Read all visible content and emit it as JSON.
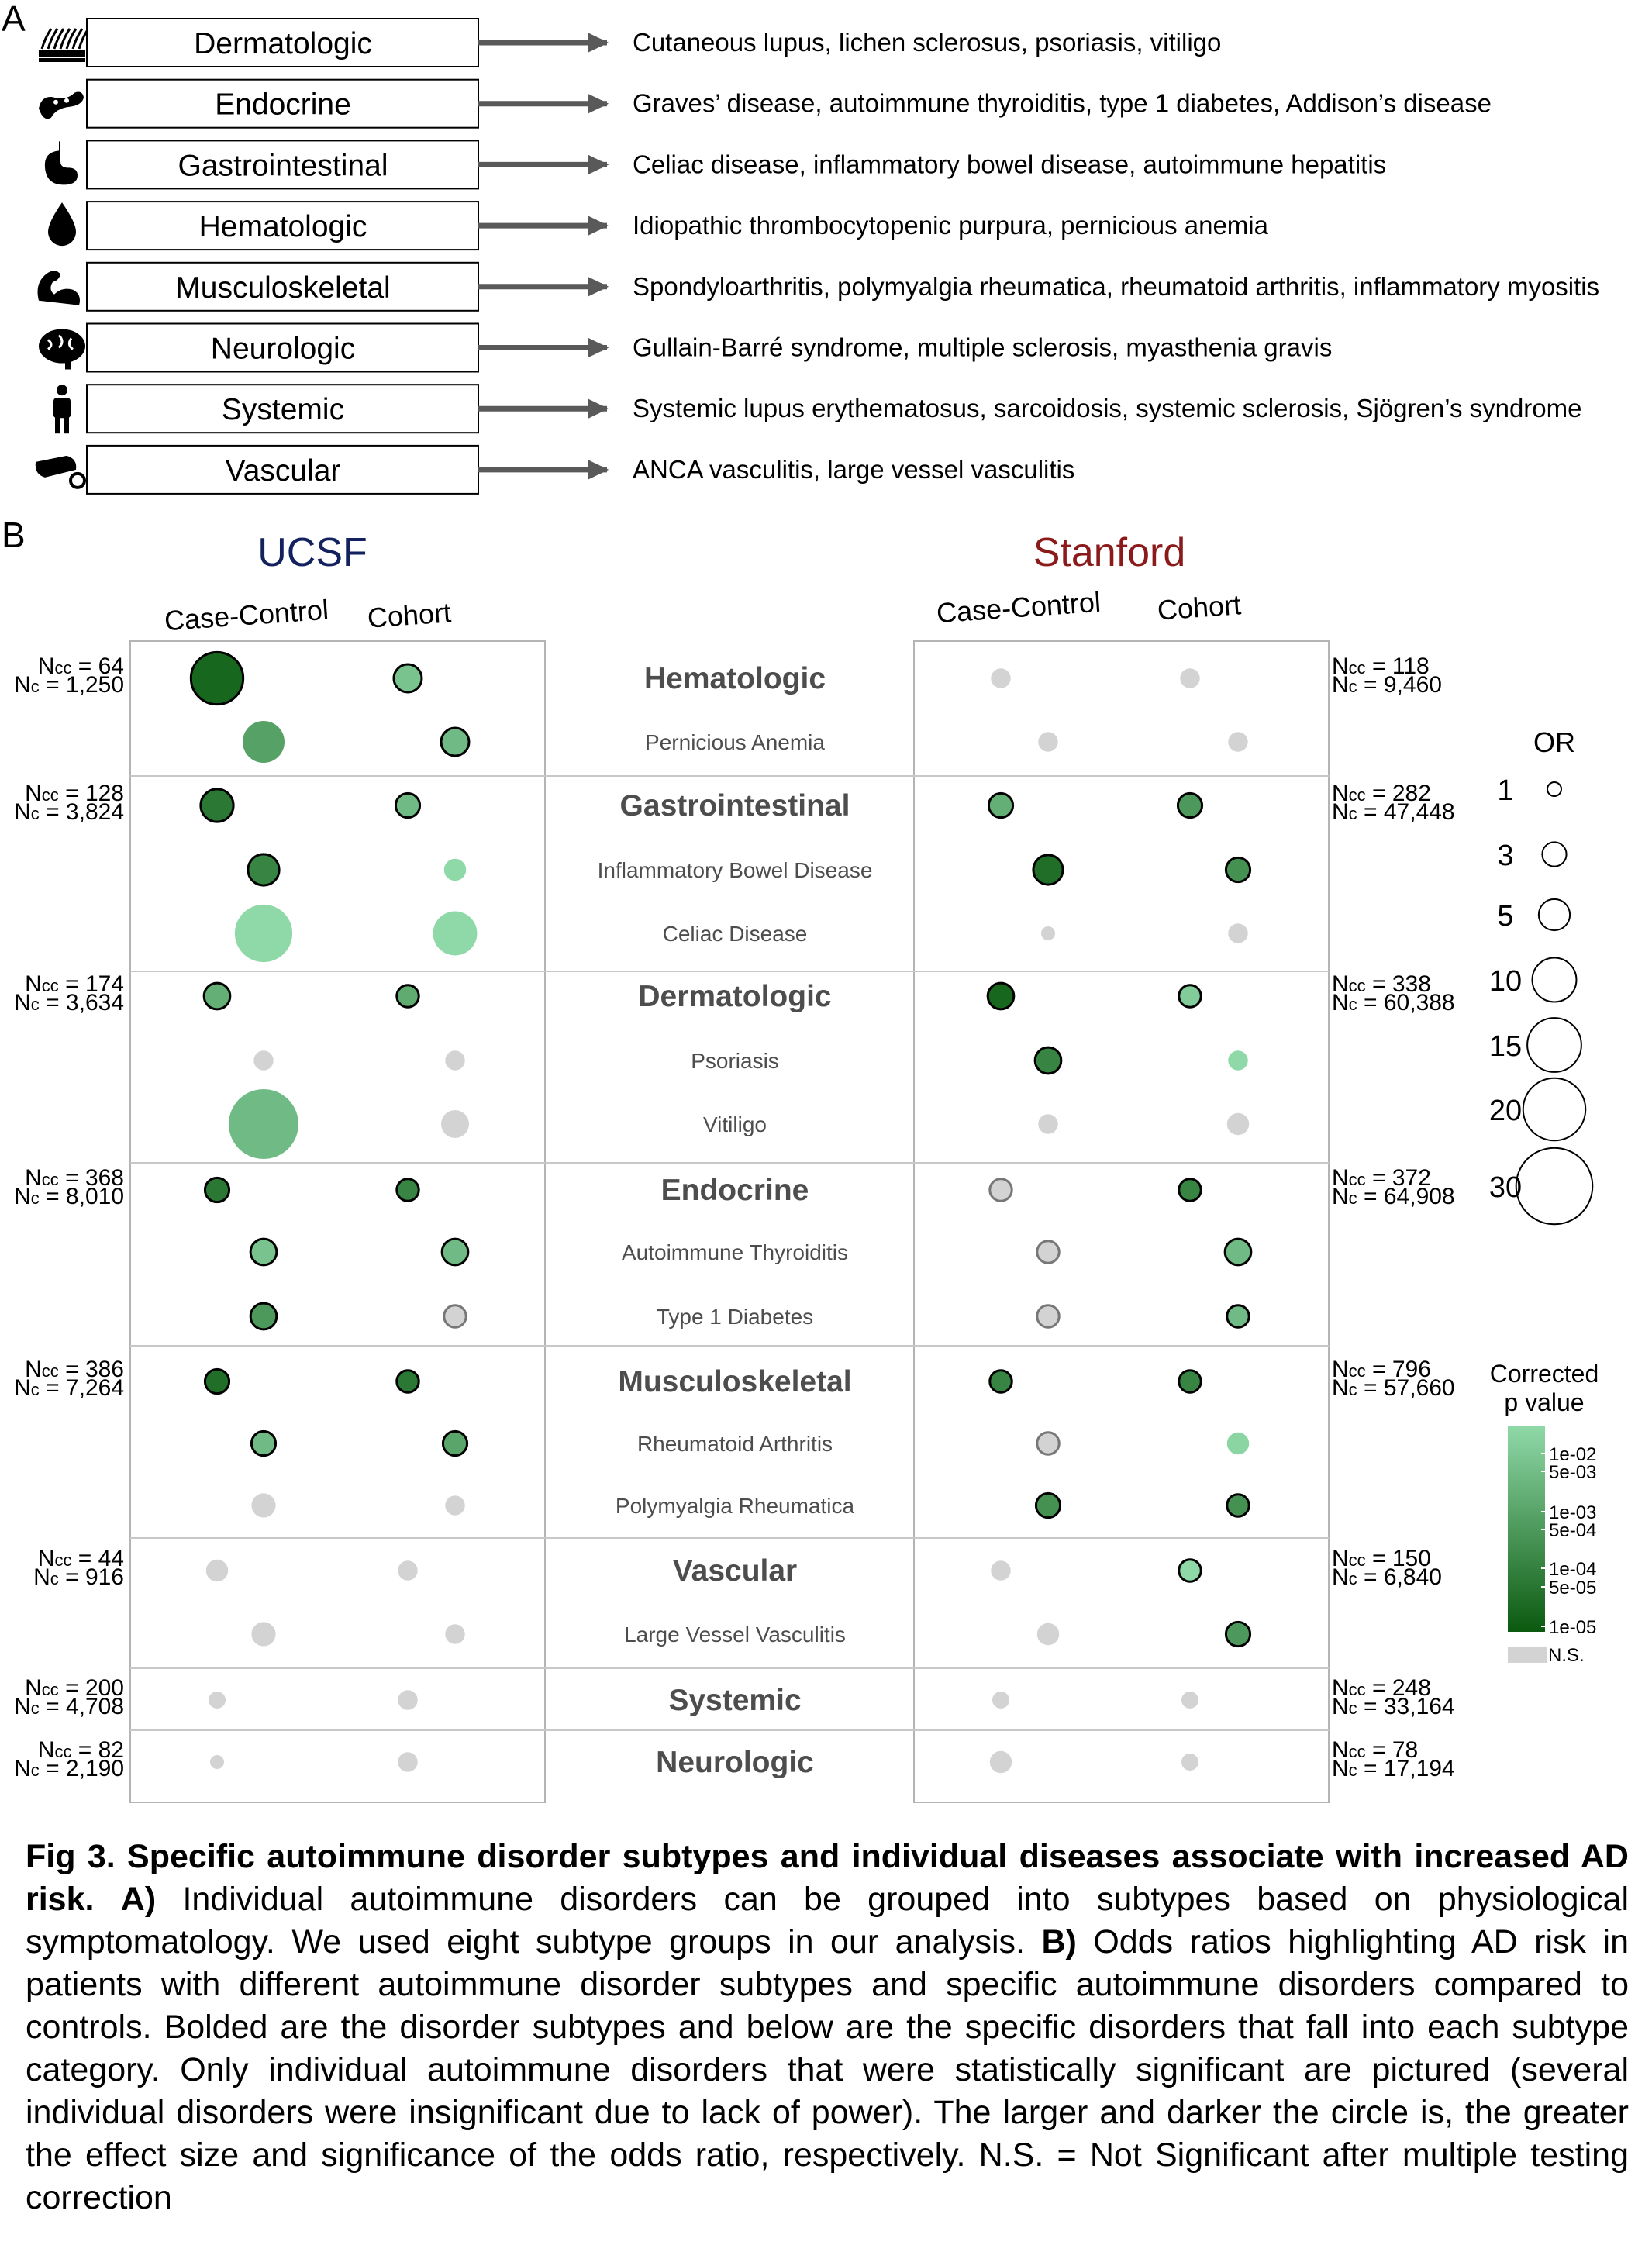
{
  "panel_a": {
    "label": "A",
    "rows": [
      {
        "category": "Dermatologic",
        "icon": "skin-icon",
        "diseases": "Cutaneous lupus, lichen sclerosus, psoriasis, vitiligo"
      },
      {
        "category": "Endocrine",
        "icon": "pancreas-icon",
        "diseases": "Graves’ disease, autoimmune thyroiditis, type 1 diabetes, Addison’s disease"
      },
      {
        "category": "Gastrointestinal",
        "icon": "stomach-icon",
        "diseases": "Celiac disease, inflammatory bowel disease, autoimmune hepatitis"
      },
      {
        "category": "Hematologic",
        "icon": "blood-drop-icon",
        "diseases": "Idiopathic thrombocytopenic purpura, pernicious anemia"
      },
      {
        "category": "Musculoskeletal",
        "icon": "bone-muscle-icon",
        "diseases": "Spondyloarthritis, polymyalgia rheumatica, rheumatoid arthritis, inflammatory myositis"
      },
      {
        "category": "Neurologic",
        "icon": "brain-icon",
        "diseases": "Gullain-Barré syndrome, multiple sclerosis, myasthenia gravis"
      },
      {
        "category": "Systemic",
        "icon": "person-icon",
        "diseases": "Systemic lupus erythematosus, sarcoidosis, systemic sclerosis, Sjögren’s syndrome"
      },
      {
        "category": "Vascular",
        "icon": "blood-vessel-icon",
        "diseases": "ANCA vasculitis, large vessel vasculitis"
      }
    ]
  },
  "panel_b": {
    "label": "B",
    "sites": [
      "UCSF",
      "Stanford"
    ],
    "site_colors": {
      "UCSF": "#13215e",
      "Stanford": "#8b1a1a"
    },
    "designs": [
      "Case-Control",
      "Cohort"
    ]
  },
  "chart_data": {
    "type": "scatter",
    "encoding": "bubble: size = OR, fill = corrected p value, grey = N.S., black outline = bold subtype row",
    "rows": [
      {
        "label": "Hematologic",
        "subtype": true,
        "ucsf_n": [
          "Ncc = 64",
          "Nc = 1,250"
        ],
        "stanford_n": [
          "Ncc = 118",
          "Nc = 9,460"
        ]
      },
      {
        "label": "Pernicious Anemia",
        "subtype": false
      },
      {
        "label": "Gastrointestinal",
        "subtype": true,
        "ucsf_n": [
          "Ncc = 128",
          "Nc = 3,824"
        ],
        "stanford_n": [
          "Ncc = 282",
          "Nc = 47,448"
        ]
      },
      {
        "label": "Inflammatory Bowel Disease",
        "subtype": false
      },
      {
        "label": "Celiac Disease",
        "subtype": false
      },
      {
        "label": "Dermatologic",
        "subtype": true,
        "ucsf_n": [
          "Ncc = 174",
          "Nc = 3,634"
        ],
        "stanford_n": [
          "Ncc = 338",
          "Nc = 60,388"
        ]
      },
      {
        "label": "Psoriasis",
        "subtype": false
      },
      {
        "label": "Vitiligo",
        "subtype": false
      },
      {
        "label": "Endocrine",
        "subtype": true,
        "ucsf_n": [
          "Ncc = 368",
          "Nc = 8,010"
        ],
        "stanford_n": [
          "Ncc = 372",
          "Nc = 64,908"
        ]
      },
      {
        "label": "Autoimmune Thyroiditis",
        "subtype": false
      },
      {
        "label": "Type 1 Diabetes",
        "subtype": false
      },
      {
        "label": "Musculoskeletal",
        "subtype": true,
        "ucsf_n": [
          "Ncc = 386",
          "Nc = 7,264"
        ],
        "stanford_n": [
          "Ncc = 796",
          "Nc = 57,660"
        ]
      },
      {
        "label": "Rheumatoid Arthritis",
        "subtype": false
      },
      {
        "label": "Polymyalgia Rheumatica",
        "subtype": false
      },
      {
        "label": "Vascular",
        "subtype": true,
        "ucsf_n": [
          "Ncc = 44",
          "Nc = 916"
        ],
        "stanford_n": [
          "Ncc = 150",
          "Nc = 6,840"
        ]
      },
      {
        "label": "Large Vessel Vasculitis",
        "subtype": false
      },
      {
        "label": "Systemic",
        "subtype": true,
        "ucsf_n": [
          "Ncc = 200",
          "Nc = 4,708"
        ],
        "stanford_n": [
          "Ncc = 248",
          "Nc = 33,164"
        ]
      },
      {
        "label": "Neurologic",
        "subtype": true,
        "ucsf_n": [
          "Ncc = 82",
          "Nc = 2,190"
        ],
        "stanford_n": [
          "Ncc = 78",
          "Nc = 17,194"
        ]
      }
    ],
    "points": [
      {
        "row": 0,
        "site": "UCSF",
        "design": "Case-Control",
        "or": 14,
        "p": 2e-05,
        "sig": true
      },
      {
        "row": 0,
        "site": "UCSF",
        "design": "Cohort",
        "or": 4,
        "p": 0.003,
        "sig": true
      },
      {
        "row": 0,
        "site": "Stanford",
        "design": "Case-Control",
        "or": 2,
        "p": null,
        "sig": false
      },
      {
        "row": 0,
        "site": "Stanford",
        "design": "Cohort",
        "or": 2,
        "p": null,
        "sig": false
      },
      {
        "row": 1,
        "site": "UCSF",
        "design": "Case-Control",
        "or": 9,
        "p": 0.0005,
        "sig": true
      },
      {
        "row": 1,
        "site": "UCSF",
        "design": "Cohort",
        "or": 4,
        "p": 0.002,
        "sig": true
      },
      {
        "row": 1,
        "site": "Stanford",
        "design": "Case-Control",
        "or": 2,
        "p": null,
        "sig": false
      },
      {
        "row": 1,
        "site": "Stanford",
        "design": "Cohort",
        "or": 2,
        "p": null,
        "sig": false
      },
      {
        "row": 2,
        "site": "UCSF",
        "design": "Case-Control",
        "or": 5.5,
        "p": 5e-05,
        "sig": true
      },
      {
        "row": 2,
        "site": "UCSF",
        "design": "Cohort",
        "or": 3,
        "p": 0.002,
        "sig": true
      },
      {
        "row": 2,
        "site": "Stanford",
        "design": "Case-Control",
        "or": 3,
        "p": 0.001,
        "sig": true
      },
      {
        "row": 2,
        "site": "Stanford",
        "design": "Cohort",
        "or": 3,
        "p": 0.0003,
        "sig": true
      },
      {
        "row": 3,
        "site": "UCSF",
        "design": "Case-Control",
        "or": 5,
        "p": 0.0001,
        "sig": true
      },
      {
        "row": 3,
        "site": "UCSF",
        "design": "Cohort",
        "or": 2.5,
        "p": 0.01,
        "sig": true
      },
      {
        "row": 3,
        "site": "Stanford",
        "design": "Case-Control",
        "or": 4.5,
        "p": 3e-05,
        "sig": true
      },
      {
        "row": 3,
        "site": "Stanford",
        "design": "Cohort",
        "or": 3,
        "p": 0.0002,
        "sig": true
      },
      {
        "row": 4,
        "site": "UCSF",
        "design": "Case-Control",
        "or": 17,
        "p": 0.01,
        "sig": true
      },
      {
        "row": 4,
        "site": "UCSF",
        "design": "Cohort",
        "or": 10,
        "p": 0.01,
        "sig": true
      },
      {
        "row": 4,
        "site": "Stanford",
        "design": "Case-Control",
        "or": 1,
        "p": null,
        "sig": false
      },
      {
        "row": 4,
        "site": "Stanford",
        "design": "Cohort",
        "or": 2,
        "p": null,
        "sig": false
      },
      {
        "row": 5,
        "site": "UCSF",
        "design": "Case-Control",
        "or": 3.5,
        "p": 0.001,
        "sig": true
      },
      {
        "row": 5,
        "site": "UCSF",
        "design": "Cohort",
        "or": 2.5,
        "p": 0.0008,
        "sig": true
      },
      {
        "row": 5,
        "site": "Stanford",
        "design": "Case-Control",
        "or": 3.5,
        "p": 2e-05,
        "sig": true
      },
      {
        "row": 5,
        "site": "Stanford",
        "design": "Cohort",
        "or": 2.5,
        "p": 0.005,
        "sig": true
      },
      {
        "row": 6,
        "site": "UCSF",
        "design": "Case-Control",
        "or": 2,
        "p": null,
        "sig": false
      },
      {
        "row": 6,
        "site": "UCSF",
        "design": "Cohort",
        "or": 2,
        "p": null,
        "sig": false
      },
      {
        "row": 6,
        "site": "Stanford",
        "design": "Case-Control",
        "or": 3.5,
        "p": 0.0001,
        "sig": true
      },
      {
        "row": 6,
        "site": "Stanford",
        "design": "Cohort",
        "or": 2,
        "p": 0.01,
        "sig": true
      },
      {
        "row": 7,
        "site": "UCSF",
        "design": "Case-Control",
        "or": 25,
        "p": 0.002,
        "sig": true
      },
      {
        "row": 7,
        "site": "UCSF",
        "design": "Cohort",
        "or": 4,
        "p": null,
        "sig": false
      },
      {
        "row": 7,
        "site": "Stanford",
        "design": "Case-Control",
        "or": 2,
        "p": null,
        "sig": false
      },
      {
        "row": 7,
        "site": "Stanford",
        "design": "Cohort",
        "or": 2.5,
        "p": null,
        "sig": false
      },
      {
        "row": 8,
        "site": "UCSF",
        "design": "Case-Control",
        "or": 3,
        "p": 5e-05,
        "sig": true
      },
      {
        "row": 8,
        "site": "UCSF",
        "design": "Cohort",
        "or": 2.5,
        "p": 0.0001,
        "sig": true
      },
      {
        "row": 8,
        "site": "Stanford",
        "design": "Case-Control",
        "or": 2.5,
        "p": null,
        "sig": false
      },
      {
        "row": 8,
        "site": "Stanford",
        "design": "Cohort",
        "or": 2.5,
        "p": 0.0001,
        "sig": true
      },
      {
        "row": 9,
        "site": "UCSF",
        "design": "Case-Control",
        "or": 3.5,
        "p": 0.003,
        "sig": true
      },
      {
        "row": 9,
        "site": "UCSF",
        "design": "Cohort",
        "or": 3.5,
        "p": 0.002,
        "sig": true
      },
      {
        "row": 9,
        "site": "Stanford",
        "design": "Case-Control",
        "or": 2.5,
        "p": null,
        "sig": false
      },
      {
        "row": 9,
        "site": "Stanford",
        "design": "Cohort",
        "or": 3.5,
        "p": 0.002,
        "sig": true
      },
      {
        "row": 10,
        "site": "UCSF",
        "design": "Case-Control",
        "or": 3.5,
        "p": 0.0003,
        "sig": true
      },
      {
        "row": 10,
        "site": "UCSF",
        "design": "Cohort",
        "or": 2.5,
        "p": null,
        "sig": false
      },
      {
        "row": 10,
        "site": "Stanford",
        "design": "Case-Control",
        "or": 2.5,
        "p": null,
        "sig": false
      },
      {
        "row": 10,
        "site": "Stanford",
        "design": "Cohort",
        "or": 2.5,
        "p": 0.002,
        "sig": true
      },
      {
        "row": 11,
        "site": "UCSF",
        "design": "Case-Control",
        "or": 3,
        "p": 3e-05,
        "sig": true
      },
      {
        "row": 11,
        "site": "UCSF",
        "design": "Cohort",
        "or": 2.5,
        "p": 5e-05,
        "sig": true
      },
      {
        "row": 11,
        "site": "Stanford",
        "design": "Case-Control",
        "or": 2.5,
        "p": 0.0001,
        "sig": true
      },
      {
        "row": 11,
        "site": "Stanford",
        "design": "Cohort",
        "or": 2.5,
        "p": 0.0001,
        "sig": true
      },
      {
        "row": 12,
        "site": "UCSF",
        "design": "Case-Control",
        "or": 3,
        "p": 0.002,
        "sig": true
      },
      {
        "row": 12,
        "site": "UCSF",
        "design": "Cohort",
        "or": 3,
        "p": 0.0006,
        "sig": true
      },
      {
        "row": 12,
        "site": "Stanford",
        "design": "Case-Control",
        "or": 2.5,
        "p": null,
        "sig": false
      },
      {
        "row": 12,
        "site": "Stanford",
        "design": "Cohort",
        "or": 2.5,
        "p": 0.008,
        "sig": true
      },
      {
        "row": 13,
        "site": "UCSF",
        "design": "Case-Control",
        "or": 3,
        "p": null,
        "sig": false
      },
      {
        "row": 13,
        "site": "UCSF",
        "design": "Cohort",
        "or": 2,
        "p": null,
        "sig": false
      },
      {
        "row": 13,
        "site": "Stanford",
        "design": "Case-Control",
        "or": 3,
        "p": 0.0002,
        "sig": true
      },
      {
        "row": 13,
        "site": "Stanford",
        "design": "Cohort",
        "or": 2.5,
        "p": 0.0002,
        "sig": true
      },
      {
        "row": 14,
        "site": "UCSF",
        "design": "Case-Control",
        "or": 2.5,
        "p": null,
        "sig": false
      },
      {
        "row": 14,
        "site": "UCSF",
        "design": "Cohort",
        "or": 2,
        "p": null,
        "sig": false
      },
      {
        "row": 14,
        "site": "Stanford",
        "design": "Case-Control",
        "or": 2,
        "p": null,
        "sig": false
      },
      {
        "row": 14,
        "site": "Stanford",
        "design": "Cohort",
        "or": 2.5,
        "p": 0.01,
        "sig": true
      },
      {
        "row": 15,
        "site": "UCSF",
        "design": "Case-Control",
        "or": 3,
        "p": null,
        "sig": false
      },
      {
        "row": 15,
        "site": "UCSF",
        "design": "Cohort",
        "or": 2,
        "p": null,
        "sig": false
      },
      {
        "row": 15,
        "site": "Stanford",
        "design": "Case-Control",
        "or": 2.5,
        "p": null,
        "sig": false
      },
      {
        "row": 15,
        "site": "Stanford",
        "design": "Cohort",
        "or": 3,
        "p": 0.0003,
        "sig": true
      },
      {
        "row": 16,
        "site": "UCSF",
        "design": "Case-Control",
        "or": 1.5,
        "p": null,
        "sig": false
      },
      {
        "row": 16,
        "site": "UCSF",
        "design": "Cohort",
        "or": 2,
        "p": null,
        "sig": false
      },
      {
        "row": 16,
        "site": "Stanford",
        "design": "Case-Control",
        "or": 1.5,
        "p": null,
        "sig": false
      },
      {
        "row": 16,
        "site": "Stanford",
        "design": "Cohort",
        "or": 1.5,
        "p": null,
        "sig": false
      },
      {
        "row": 17,
        "site": "UCSF",
        "design": "Case-Control",
        "or": 1,
        "p": null,
        "sig": false
      },
      {
        "row": 17,
        "site": "UCSF",
        "design": "Cohort",
        "or": 2,
        "p": null,
        "sig": false
      },
      {
        "row": 17,
        "site": "Stanford",
        "design": "Case-Control",
        "or": 2.5,
        "p": null,
        "sig": false
      },
      {
        "row": 17,
        "site": "Stanford",
        "design": "Cohort",
        "or": 1.5,
        "p": null,
        "sig": false
      }
    ],
    "size_legend": {
      "title": "OR",
      "values": [
        1,
        3,
        5,
        10,
        15,
        20,
        30
      ]
    },
    "color_legend": {
      "title": [
        "Corrected",
        "p value"
      ],
      "ticks": [
        "1e-02",
        "5e-03",
        "1e-03",
        "5e-04",
        "1e-04",
        "5e-05",
        "1e-05"
      ],
      "ns_label": "N.S.",
      "colors": {
        "light": "#8fd9a8",
        "dark": "#0b5a10",
        "ns": "#d3d3d3"
      }
    }
  },
  "caption": {
    "fig_label": "Fig 3.",
    "title": "Specific autoimmune disorder subtypes and individual diseases associate with increased AD risk.",
    "a_label": "A)",
    "a_text": "Individual autoimmune disorders can be grouped into subtypes based on physiological symptomatology. We used eight subtype groups in our analysis.",
    "b_label": "B)",
    "b_text": "Odds ratios highlighting AD risk in patients with different autoimmune disorder subtypes and specific autoimmune disorders compared to controls. Bolded are the disorder subtypes and below are the specific disorders that fall into each subtype category. Only individual autoimmune disorders that were statistically significant are pictured (several individual disorders were insignificant due to lack of power). The larger and darker the circle is, the greater the effect size and significance of the odds ratio, respectively. N.S. = Not Significant after multiple testing correction"
  }
}
